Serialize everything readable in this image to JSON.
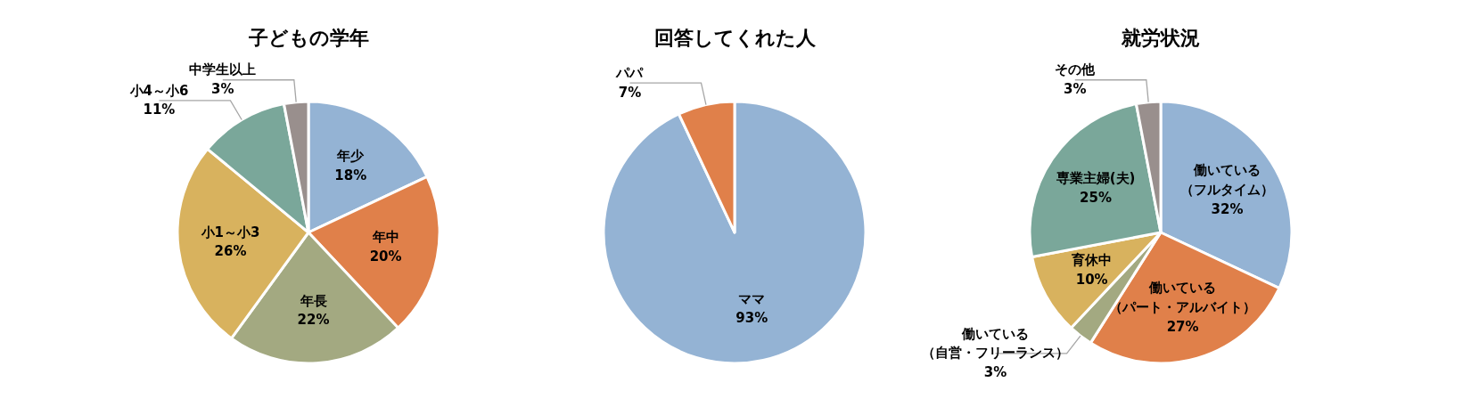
{
  "chart_data": [
    {
      "type": "pie",
      "title": "子どもの学年",
      "categories": [
        "年少",
        "年中",
        "年長",
        "小1～小3",
        "小4～小6",
        "中学生以上"
      ],
      "values": [
        18,
        20,
        22,
        26,
        11,
        3
      ],
      "value_labels": [
        "18%",
        "20%",
        "22%",
        "26%",
        "11%",
        "3%"
      ],
      "colors": [
        "#94b3d4",
        "#e0804a",
        "#a3a981",
        "#d8b25e",
        "#7aa79a",
        "#998f8d"
      ]
    },
    {
      "type": "pie",
      "title": "回答してくれた人",
      "categories": [
        "ママ",
        "パパ"
      ],
      "values": [
        93,
        7
      ],
      "value_labels": [
        "93%",
        "7%"
      ],
      "colors": [
        "#94b3d4",
        "#e0804a"
      ]
    },
    {
      "type": "pie",
      "title": "就労状況",
      "categories": [
        "働いている（フルタイム）",
        "働いている（パート・アルバイト）",
        "働いている（自営・フリーランス）",
        "育休中",
        "専業主婦(夫)",
        "その他"
      ],
      "values": [
        32,
        27,
        3,
        10,
        25,
        3
      ],
      "value_labels": [
        "32%",
        "27%",
        "3%",
        "10%",
        "25%",
        "3%"
      ],
      "colors": [
        "#94b3d4",
        "#e0804a",
        "#a3a981",
        "#d8b25e",
        "#7aa79a",
        "#998f8d"
      ]
    }
  ]
}
